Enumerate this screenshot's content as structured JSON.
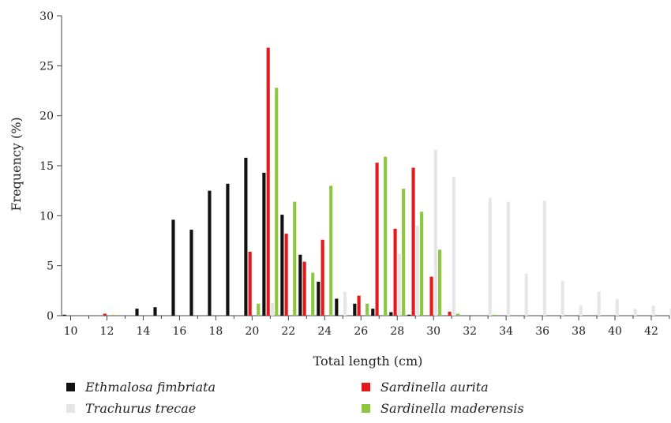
{
  "chart_data": {
    "type": "bar",
    "xlabel": "Total length (cm)",
    "ylabel": "Frequency (%)",
    "ylim": [
      0,
      30
    ],
    "yticks": [
      0,
      5,
      10,
      15,
      20,
      25,
      30
    ],
    "xlim": [
      9.5,
      43
    ],
    "xticks": [
      10,
      12,
      14,
      16,
      18,
      20,
      22,
      24,
      26,
      28,
      30,
      32,
      34,
      36,
      38,
      40,
      42
    ],
    "x": [
      10,
      11,
      12,
      13,
      14,
      15,
      16,
      17,
      18,
      19,
      20,
      21,
      22,
      23,
      24,
      25,
      26,
      27,
      28,
      29,
      30,
      31,
      32,
      33,
      34,
      35,
      36,
      37,
      38,
      39,
      40,
      41,
      42,
      43
    ],
    "legend_position": "bottom",
    "grid": false,
    "series": [
      {
        "name": "Ethmalosa fimbriata",
        "color": "#111111",
        "values": [
          0.1,
          0,
          0,
          0,
          0.7,
          0.85,
          9.6,
          8.6,
          12.5,
          13.2,
          15.8,
          14.3,
          10.1,
          6.1,
          3.4,
          1.7,
          1.2,
          0.7,
          0.35,
          0.1,
          0,
          0,
          0,
          0,
          0,
          0,
          0,
          0,
          0,
          0,
          0,
          0,
          0,
          0
        ]
      },
      {
        "name": "Sardinella aurita",
        "color": "#e31a1c",
        "values": [
          0,
          0,
          0.2,
          0,
          0,
          0,
          0,
          0,
          0,
          0,
          6.4,
          26.8,
          8.2,
          5.4,
          7.6,
          0,
          2.0,
          15.3,
          8.7,
          14.8,
          3.9,
          0.4,
          0,
          0,
          0,
          0,
          0,
          0,
          0,
          0,
          0,
          0,
          0,
          0
        ]
      },
      {
        "name": "Trachurus trecae",
        "color": "#e6e6e6",
        "values": [
          0,
          0,
          0,
          0,
          0,
          0,
          0,
          0,
          0,
          0,
          0,
          1.3,
          0,
          0,
          0,
          2.4,
          0,
          0,
          6.2,
          9.0,
          16.6,
          13.9,
          0,
          11.8,
          11.4,
          4.2,
          11.5,
          3.5,
          1.0,
          2.4,
          1.7,
          0.7,
          1.0,
          0.7
        ]
      },
      {
        "name": "Sardinella maderensis",
        "color": "#8dc63f",
        "values": [
          0,
          0,
          0.1,
          0,
          0,
          0,
          0,
          0,
          0,
          0,
          1.2,
          22.8,
          11.4,
          4.3,
          13.0,
          0,
          1.2,
          15.9,
          12.7,
          10.4,
          6.6,
          0.2,
          0,
          0.1,
          0,
          0,
          0,
          0,
          0,
          0,
          0,
          0,
          0,
          0
        ]
      }
    ]
  }
}
